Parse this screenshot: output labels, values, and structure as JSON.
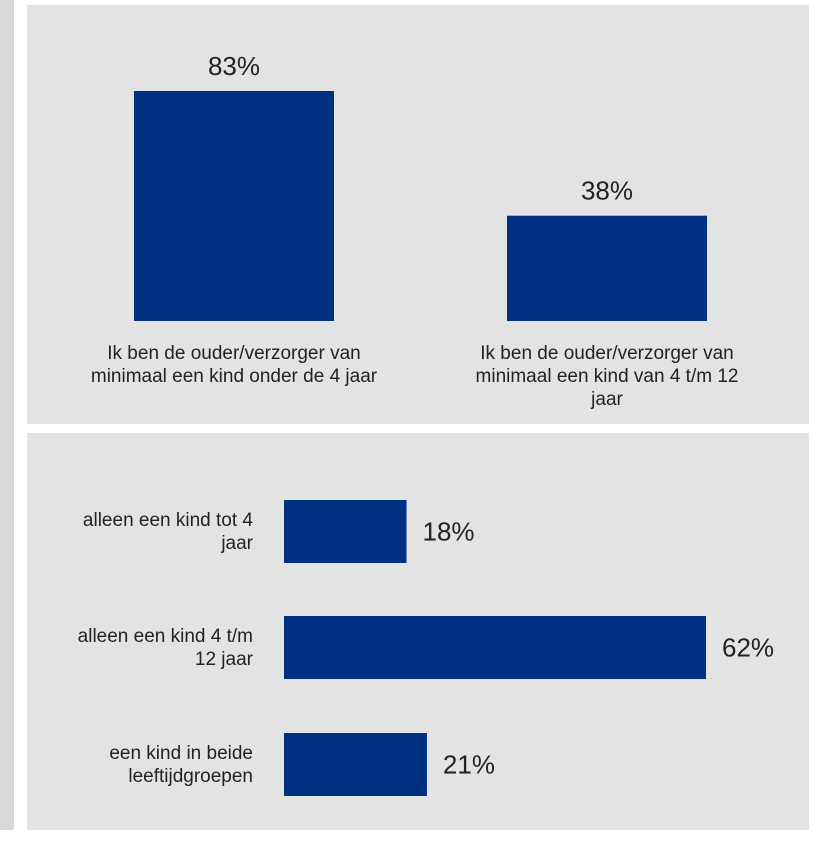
{
  "colors": {
    "bar": "#003082",
    "panel": "#e3e3e3",
    "text": "#222222"
  },
  "chart_data": [
    {
      "type": "bar",
      "orientation": "vertical",
      "categories": [
        [
          "Ik ben de ouder/verzorger van",
          "minimaal een kind onder de 4 jaar"
        ],
        [
          "Ik ben de ouder/verzorger van",
          "minimaal een kind van 4 t/m 12",
          "jaar"
        ]
      ],
      "values": [
        83,
        38
      ],
      "data_labels": [
        "83%",
        "38%"
      ],
      "unit": "%",
      "grid": false
    },
    {
      "type": "bar",
      "orientation": "horizontal",
      "categories": [
        [
          "alleen een kind tot 4",
          "jaar"
        ],
        [
          "alleen een kind 4 t/m",
          "12 jaar"
        ],
        [
          "een kind in beide",
          "leeftijdgroepen"
        ]
      ],
      "values": [
        18,
        62,
        21
      ],
      "data_labels": [
        "18%",
        "62%",
        "21%"
      ],
      "unit": "%",
      "grid": false
    }
  ]
}
